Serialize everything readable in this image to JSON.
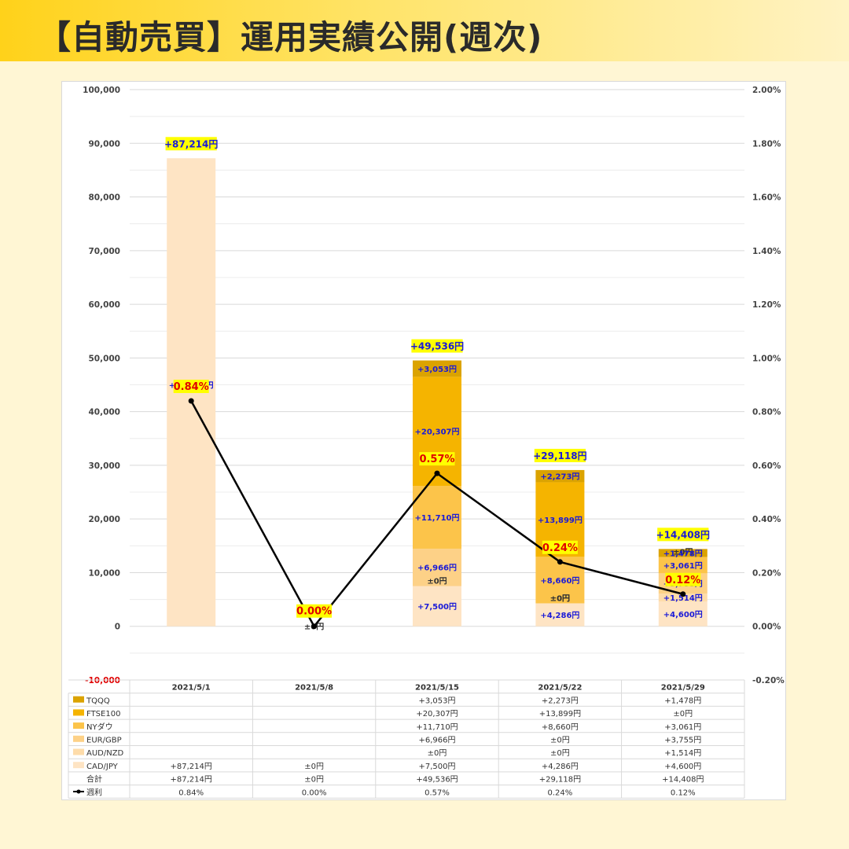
{
  "page": {
    "title": "【自動売買】運用実績公開(週次)"
  },
  "chart_data": {
    "type": "bar",
    "stacked": true,
    "categories": [
      "2021/5/1",
      "2021/5/8",
      "2021/5/15",
      "2021/5/22",
      "2021/5/29"
    ],
    "series": [
      {
        "name": "TQQQ",
        "color": "#dba300",
        "values": [
          null,
          null,
          3053,
          2273,
          1478
        ],
        "labels": [
          "",
          "",
          "+3,053円",
          "+2,273円",
          "+1,478円"
        ]
      },
      {
        "name": "FTSE100",
        "color": "#f5b400",
        "values": [
          null,
          null,
          20307,
          13899,
          0
        ],
        "labels": [
          "",
          "",
          "+20,307円",
          "+13,899円",
          "±0円"
        ]
      },
      {
        "name": "NYダウ",
        "color": "#fcc44a",
        "values": [
          null,
          null,
          11710,
          8660,
          3061
        ],
        "labels": [
          "",
          "",
          "+11,710円",
          "+8,660円",
          "+3,061円"
        ]
      },
      {
        "name": "EUR/GBP",
        "color": "#fdd187",
        "values": [
          null,
          null,
          6966,
          0,
          3755
        ],
        "labels": [
          "",
          "",
          "+6,966円",
          "±0円",
          "+3,755円"
        ]
      },
      {
        "name": "AUD/NZD",
        "color": "#fedcaa",
        "values": [
          null,
          null,
          0,
          0,
          1514
        ],
        "labels": [
          "",
          "",
          "±0円",
          "±0円",
          "+1,514円"
        ]
      },
      {
        "name": "CAD/JPY",
        "color": "#fee4c4",
        "values": [
          87214,
          0,
          7500,
          4286,
          4600
        ],
        "labels": [
          "+87,214円",
          "±0円",
          "+7,500円",
          "+4,286円",
          "+4,600円"
        ]
      }
    ],
    "totals": {
      "name": "合計",
      "values": [
        87214,
        0,
        49536,
        29118,
        14408
      ],
      "labels": [
        "+87,214円",
        "±0円",
        "+49,536円",
        "+29,118円",
        "+14,408円"
      ]
    },
    "line": {
      "name": "週利",
      "axis": "right",
      "color": "#000000",
      "values": [
        0.84,
        0.0,
        0.57,
        0.24,
        0.12
      ],
      "labels": [
        "0.84%",
        "0.00%",
        "0.57%",
        "0.24%",
        "0.12%"
      ]
    },
    "ylim": [
      -10000,
      100000
    ],
    "yticks": [
      "100,000",
      "90,000",
      "80,000",
      "70,000",
      "60,000",
      "50,000",
      "40,000",
      "30,000",
      "20,000",
      "10,000",
      "0",
      "-10,000"
    ],
    "y2lim": [
      -0.2,
      2.0
    ],
    "y2ticks": [
      "2.00%",
      "1.80%",
      "1.60%",
      "1.40%",
      "1.20%",
      "1.00%",
      "0.80%",
      "0.60%",
      "0.40%",
      "0.20%",
      "0.00%",
      "-0.20%"
    ],
    "grid": true,
    "legend": "data-table-below",
    "label_highlight_color": "#ffff00"
  }
}
